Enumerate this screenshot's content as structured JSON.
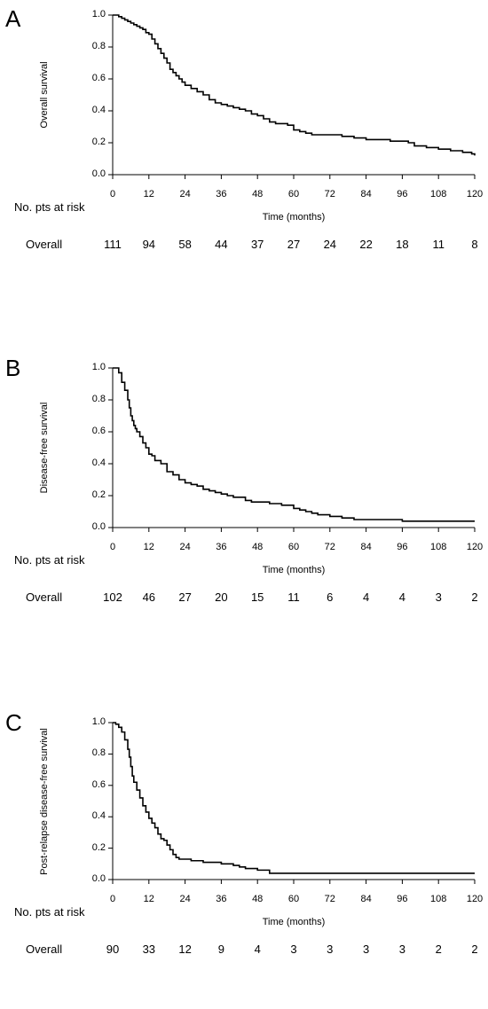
{
  "chart_data": [
    {
      "panel": "A",
      "type": "line",
      "step": true,
      "ylabel": "Overall survival",
      "xlabel": "Time (months)",
      "xlim": [
        0,
        120
      ],
      "ylim": [
        0,
        1.0
      ],
      "xticks": [
        "0",
        "12",
        "24",
        "36",
        "48",
        "60",
        "72",
        "84",
        "96",
        "108",
        "120"
      ],
      "yticks": [
        "0.0",
        "0.2",
        "0.4",
        "0.6",
        "0.8",
        "1.0"
      ],
      "series": [
        {
          "x": [
            0,
            2,
            3,
            4,
            5,
            6,
            7,
            8,
            9,
            10,
            11,
            12,
            13,
            14,
            15,
            16,
            17,
            18,
            19,
            20,
            21,
            22,
            23,
            24,
            26,
            28,
            30,
            32,
            34,
            36,
            38,
            40,
            42,
            44,
            46,
            48,
            50,
            52,
            54,
            58,
            60,
            62,
            64,
            66,
            72,
            76,
            80,
            82,
            84,
            88,
            92,
            96,
            98,
            100,
            104,
            108,
            112,
            116,
            119,
            120
          ],
          "y": [
            1.0,
            0.99,
            0.98,
            0.97,
            0.96,
            0.95,
            0.94,
            0.93,
            0.92,
            0.91,
            0.89,
            0.88,
            0.85,
            0.82,
            0.79,
            0.76,
            0.73,
            0.7,
            0.66,
            0.64,
            0.62,
            0.6,
            0.58,
            0.56,
            0.54,
            0.52,
            0.5,
            0.47,
            0.45,
            0.44,
            0.43,
            0.42,
            0.41,
            0.4,
            0.38,
            0.37,
            0.35,
            0.33,
            0.32,
            0.31,
            0.28,
            0.27,
            0.26,
            0.25,
            0.25,
            0.24,
            0.23,
            0.23,
            0.22,
            0.22,
            0.21,
            0.21,
            0.2,
            0.18,
            0.17,
            0.16,
            0.15,
            0.14,
            0.13,
            0.12
          ]
        }
      ],
      "risk_table": {
        "header": "No. pts at risk",
        "row_label": "Overall",
        "values": [
          "111",
          "94",
          "58",
          "44",
          "37",
          "27",
          "24",
          "22",
          "18",
          "11",
          "8"
        ]
      }
    },
    {
      "panel": "B",
      "type": "line",
      "step": true,
      "ylabel": "Disease-free survival",
      "xlabel": "Time (months)",
      "xlim": [
        0,
        120
      ],
      "ylim": [
        0,
        1.0
      ],
      "xticks": [
        "0",
        "12",
        "24",
        "36",
        "48",
        "60",
        "72",
        "84",
        "96",
        "108",
        "120"
      ],
      "yticks": [
        "0.0",
        "0.2",
        "0.4",
        "0.6",
        "0.8",
        "1.0"
      ],
      "series": [
        {
          "x": [
            0,
            1,
            2,
            3,
            4,
            5,
            5.5,
            6,
            6.5,
            7,
            7.5,
            8,
            9,
            10,
            11,
            12,
            13,
            14,
            16,
            18,
            20,
            22,
            24,
            26,
            28,
            30,
            32,
            34,
            36,
            38,
            40,
            44,
            46,
            52,
            56,
            60,
            62,
            64,
            66,
            68,
            72,
            76,
            80,
            84,
            90,
            96,
            100,
            120
          ],
          "y": [
            1.0,
            1.0,
            0.97,
            0.91,
            0.86,
            0.8,
            0.75,
            0.7,
            0.67,
            0.64,
            0.62,
            0.6,
            0.57,
            0.53,
            0.5,
            0.46,
            0.45,
            0.42,
            0.4,
            0.35,
            0.33,
            0.3,
            0.28,
            0.27,
            0.26,
            0.24,
            0.23,
            0.22,
            0.21,
            0.2,
            0.19,
            0.17,
            0.16,
            0.15,
            0.14,
            0.12,
            0.11,
            0.1,
            0.09,
            0.08,
            0.07,
            0.06,
            0.05,
            0.05,
            0.05,
            0.04,
            0.04,
            0.04
          ]
        }
      ],
      "risk_table": {
        "header": "No. pts at risk",
        "row_label": "Overall",
        "values": [
          "102",
          "46",
          "27",
          "20",
          "15",
          "11",
          "6",
          "4",
          "4",
          "3",
          "2"
        ]
      }
    },
    {
      "panel": "C",
      "type": "line",
      "step": true,
      "ylabel": "Post-relapse disease-free survival",
      "xlabel": "Time (months)",
      "xlim": [
        0,
        120
      ],
      "ylim": [
        0,
        1.0
      ],
      "xticks": [
        "0",
        "12",
        "24",
        "36",
        "48",
        "60",
        "72",
        "84",
        "96",
        "108",
        "120"
      ],
      "yticks": [
        "0.0",
        "0.2",
        "0.4",
        "0.6",
        "0.8",
        "1.0"
      ],
      "series": [
        {
          "x": [
            0,
            1,
            2,
            3,
            4,
            5,
            5.5,
            6,
            6.5,
            7,
            8,
            9,
            10,
            11,
            12,
            13,
            14,
            15,
            16,
            17,
            18,
            19,
            20,
            21,
            22,
            26,
            30,
            36,
            40,
            42,
            44,
            48,
            52,
            54,
            120
          ],
          "y": [
            1.0,
            0.99,
            0.97,
            0.94,
            0.89,
            0.83,
            0.78,
            0.72,
            0.66,
            0.62,
            0.57,
            0.52,
            0.47,
            0.43,
            0.39,
            0.36,
            0.33,
            0.29,
            0.26,
            0.25,
            0.22,
            0.19,
            0.16,
            0.14,
            0.13,
            0.12,
            0.11,
            0.1,
            0.09,
            0.08,
            0.07,
            0.06,
            0.04,
            0.04,
            0.04
          ]
        }
      ],
      "risk_table": {
        "header": "No. pts at risk",
        "row_label": "Overall",
        "values": [
          "90",
          "33",
          "12",
          "9",
          "4",
          "3",
          "3",
          "3",
          "3",
          "2",
          "2"
        ]
      }
    }
  ]
}
